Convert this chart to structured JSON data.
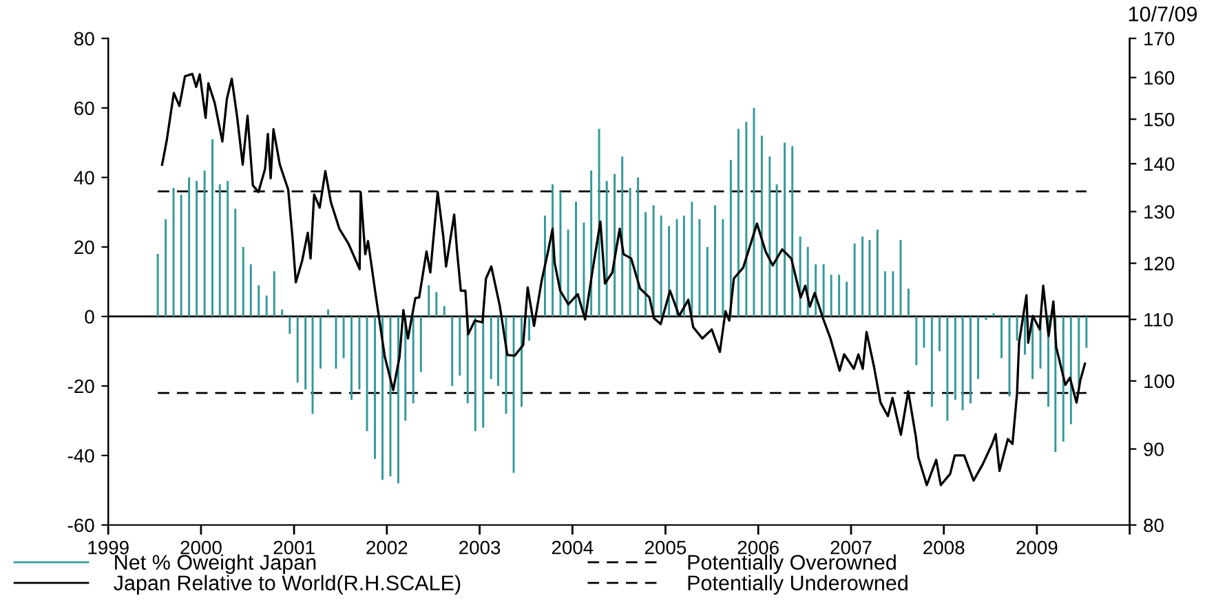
{
  "chart_data": {
    "type": "bar",
    "annotations": [
      "10/7/09"
    ],
    "xlim": [
      "1999-01-01",
      "2010-01-01"
    ],
    "xticks": [
      {
        "value": "1999-01-01",
        "label": "1999"
      },
      {
        "value": "2000-01-01",
        "label": "2000"
      },
      {
        "value": "2001-01-01",
        "label": "2001"
      },
      {
        "value": "2002-01-01",
        "label": "2002"
      },
      {
        "value": "2003-01-01",
        "label": "2003"
      },
      {
        "value": "2004-01-01",
        "label": "2004"
      },
      {
        "value": "2005-01-01",
        "label": "2005"
      },
      {
        "value": "2006-01-01",
        "label": "2006"
      },
      {
        "value": "2007-01-01",
        "label": "2007"
      },
      {
        "value": "2008-01-01",
        "label": "2008"
      },
      {
        "value": "2009-01-01",
        "label": "2009"
      },
      {
        "value": "2010-01-01",
        "label": null
      }
    ],
    "ylim": [
      -60,
      80
    ],
    "yticks": [
      -60,
      -40,
      -20,
      0,
      20,
      40,
      60,
      80
    ],
    "y2lim": [
      80,
      170
    ],
    "y2ticks": [
      80,
      90,
      100,
      110,
      120,
      130,
      140,
      150,
      160,
      170
    ],
    "log": "y2",
    "legend": "bottom",
    "series": [
      {
        "name": "Net % Oweight Japan",
        "color": "#339999",
        "x": [
          "1999-07-15",
          "1999-08-15",
          "1999-09-15",
          "1999-10-15",
          "1999-11-15",
          "1999-12-15",
          "2000-01-15",
          "2000-02-15",
          "2000-03-15",
          "2000-04-15",
          "2000-05-15",
          "2000-06-15",
          "2000-07-15",
          "2000-08-15",
          "2000-09-15",
          "2000-10-15",
          "2000-11-15",
          "2000-12-15",
          "2001-01-15",
          "2001-02-15",
          "2001-03-15",
          "2001-04-15",
          "2001-05-15",
          "2001-06-15",
          "2001-07-15",
          "2001-08-15",
          "2001-09-15",
          "2001-10-15",
          "2001-11-15",
          "2001-12-15",
          "2002-01-15",
          "2002-02-15",
          "2002-03-15",
          "2002-04-15",
          "2002-05-15",
          "2002-06-15",
          "2002-07-15",
          "2002-08-15",
          "2002-09-15",
          "2002-10-15",
          "2002-11-15",
          "2002-12-15",
          "2003-01-15",
          "2003-02-15",
          "2003-03-15",
          "2003-04-15",
          "2003-05-15",
          "2003-06-15",
          "2003-07-15",
          "2003-08-15",
          "2003-09-15",
          "2003-10-15",
          "2003-11-15",
          "2003-12-15",
          "2004-01-15",
          "2004-02-15",
          "2004-03-15",
          "2004-04-15",
          "2004-05-15",
          "2004-06-15",
          "2004-07-15",
          "2004-08-15",
          "2004-09-15",
          "2004-10-15",
          "2004-11-15",
          "2004-12-15",
          "2005-01-15",
          "2005-02-15",
          "2005-03-15",
          "2005-04-15",
          "2005-05-15",
          "2005-06-15",
          "2005-07-15",
          "2005-08-15",
          "2005-09-15",
          "2005-10-15",
          "2005-11-15",
          "2005-12-15",
          "2006-01-15",
          "2006-02-15",
          "2006-03-15",
          "2006-04-15",
          "2006-05-15",
          "2006-06-15",
          "2006-07-15",
          "2006-08-15",
          "2006-09-15",
          "2006-10-15",
          "2006-11-15",
          "2006-12-15",
          "2007-01-15",
          "2007-02-15",
          "2007-03-15",
          "2007-04-15",
          "2007-05-15",
          "2007-06-15",
          "2007-07-15",
          "2007-08-15",
          "2007-09-15",
          "2007-10-15",
          "2007-11-15",
          "2007-12-15",
          "2008-01-15",
          "2008-02-15",
          "2008-03-15",
          "2008-04-15",
          "2008-05-15",
          "2008-06-15",
          "2008-07-15",
          "2008-08-15",
          "2008-09-15",
          "2008-10-15",
          "2008-11-15",
          "2008-12-15",
          "2009-01-15",
          "2009-02-15",
          "2009-03-15",
          "2009-04-15",
          "2009-05-15",
          "2009-06-15",
          "2009-07-15"
        ],
        "values": [
          18,
          28,
          37,
          35,
          40,
          39,
          42,
          51,
          38,
          39,
          31,
          20,
          15,
          9,
          6,
          13,
          2,
          -5,
          -19,
          -21,
          -28,
          -15,
          2,
          -15,
          -12,
          -24,
          -21,
          -33,
          -41,
          -47,
          -46,
          -48,
          -30,
          -25,
          -16,
          9,
          7,
          3,
          -20,
          -17,
          -25,
          -33,
          -32,
          -18,
          -20,
          -28,
          -45,
          -26,
          -7,
          null,
          29,
          38,
          36,
          25,
          33,
          27,
          42,
          54,
          39,
          41,
          46,
          37,
          40,
          30,
          32,
          29,
          26,
          28,
          29,
          33,
          28,
          20,
          32,
          28,
          45,
          54,
          56,
          60,
          52,
          46,
          38,
          50,
          49,
          23,
          20,
          15,
          15,
          12,
          12,
          10,
          21,
          23,
          22,
          25,
          13,
          13,
          22,
          8,
          -14,
          -9,
          -26,
          -10,
          -30,
          -24,
          -27,
          -25,
          -18,
          -1,
          1,
          -12,
          -23,
          -7,
          -11,
          -18,
          -15,
          -26,
          -39,
          -36,
          -31,
          -20,
          -9
        ]
      },
      {
        "name": "Japan Relative to World(R.H.SCALE)",
        "type": "line",
        "axis": "y2",
        "color": "#000000",
        "x": [
          "1999-08-01",
          "1999-08-19",
          "1999-09-16",
          "1999-10-08",
          "1999-10-30",
          "1999-11-28",
          "1999-12-13",
          "1999-12-27",
          "2000-01-19",
          "2000-01-30",
          "2000-02-24",
          "2000-03-25",
          "2000-04-12",
          "2000-05-01",
          "2000-05-22",
          "2000-06-13",
          "2000-07-02",
          "2000-07-23",
          "2000-08-14",
          "2000-09-09",
          "2000-09-20",
          "2000-10-01",
          "2000-10-12",
          "2000-11-06",
          "2000-12-09",
          "2000-12-27",
          "2001-01-08",
          "2001-02-02",
          "2001-02-24",
          "2001-03-07",
          "2001-03-21",
          "2001-04-12",
          "2001-05-04",
          "2001-05-26",
          "2001-06-28",
          "2001-08-03",
          "2001-09-16",
          "2001-09-20",
          "2001-10-08",
          "2001-10-19",
          "2001-11-17",
          "2001-12-24",
          "2002-01-26",
          "2002-02-20",
          "2002-03-07",
          "2002-03-25",
          "2002-04-23",
          "2002-05-08",
          "2002-06-06",
          "2002-06-21",
          "2002-07-20",
          "2002-08-11",
          "2002-08-22",
          "2002-09-23",
          "2002-10-04",
          "2002-10-19",
          "2002-11-06",
          "2002-11-17",
          "2002-12-13",
          "2003-01-12",
          "2003-01-26",
          "2003-02-16",
          "2003-03-21",
          "2003-04-20",
          "2003-05-19",
          "2003-06-21",
          "2003-07-09",
          "2003-08-03",
          "2003-09-02",
          "2003-09-27",
          "2003-10-15",
          "2003-10-23",
          "2003-11-14",
          "2003-12-16",
          "2004-01-22",
          "2004-02-20",
          "2004-03-18",
          "2004-04-20",
          "2004-05-08",
          "2004-06-06",
          "2004-07-05",
          "2004-07-20",
          "2004-08-19",
          "2004-09-23",
          "2004-10-30",
          "2004-11-17",
          "2004-12-13",
          "2005-01-19",
          "2005-02-24",
          "2005-04-01",
          "2005-04-20",
          "2005-05-26",
          "2005-07-02",
          "2005-08-03",
          "2005-08-25",
          "2005-09-09",
          "2005-09-27",
          "2005-11-03",
          "2005-12-27",
          "2006-01-30",
          "2006-02-27",
          "2006-04-05",
          "2006-05-11",
          "2006-06-17",
          "2006-07-05",
          "2006-07-23",
          "2006-08-11",
          "2006-09-16",
          "2006-10-12",
          "2006-11-17",
          "2006-12-05",
          "2007-01-12",
          "2007-01-30",
          "2007-02-16",
          "2007-03-03",
          "2007-04-01",
          "2007-04-27",
          "2007-05-26",
          "2007-06-13",
          "2007-07-16",
          "2007-08-14",
          "2007-09-13",
          "2007-09-23",
          "2007-10-26",
          "2007-12-02",
          "2007-12-20",
          "2008-01-26",
          "2008-02-13",
          "2008-03-21",
          "2008-04-27",
          "2008-06-02",
          "2008-07-09",
          "2008-07-23",
          "2008-08-07",
          "2008-09-09",
          "2008-09-27",
          "2008-10-15",
          "2008-10-23",
          "2008-11-21",
          "2008-11-28",
          "2008-12-16",
          "2009-01-12",
          "2009-01-26",
          "2009-02-16",
          "2009-03-07",
          "2009-03-18",
          "2009-04-23",
          "2009-05-11",
          "2009-06-06",
          "2009-06-21",
          "2009-07-09"
        ],
        "values": [
          139.8,
          145.1,
          156.2,
          153.1,
          160.3,
          160.9,
          157.7,
          160.8,
          150.3,
          158.6,
          153.8,
          144.9,
          154.9,
          159.7,
          150.6,
          139.8,
          150.8,
          135.4,
          134.0,
          138.9,
          146.6,
          136.9,
          147.7,
          139.8,
          134.5,
          124.2,
          116.5,
          120.5,
          125.8,
          120.9,
          133.5,
          130.8,
          138.4,
          131.9,
          126.6,
          123.7,
          118.9,
          134.0,
          121.7,
          124.2,
          114.6,
          103.8,
          98.6,
          103.8,
          111.6,
          106.8,
          113.7,
          113.8,
          122.2,
          118.3,
          134.0,
          125.1,
          119.4,
          129.4,
          122.4,
          115.0,
          115.0,
          107.5,
          109.8,
          109.5,
          117.2,
          119.4,
          112.4,
          104.1,
          104.0,
          105.7,
          115.6,
          108.9,
          116.8,
          122.2,
          126.6,
          120.1,
          115.0,
          112.6,
          114.4,
          110.0,
          118.0,
          128.0,
          116.3,
          118.3,
          126.6,
          121.7,
          120.9,
          115.4,
          113.8,
          110.2,
          109.2,
          115.0,
          110.6,
          113.4,
          108.7,
          106.8,
          108.3,
          104.6,
          111.4,
          109.8,
          117.2,
          119.2,
          127.6,
          122.2,
          119.6,
          122.6,
          120.9,
          113.8,
          115.9,
          112.2,
          114.6,
          109.8,
          106.8,
          101.6,
          104.2,
          101.9,
          104.2,
          101.9,
          107.9,
          102.3,
          96.7,
          94.7,
          97.4,
          92.0,
          98.4,
          91.7,
          88.8,
          85.1,
          88.5,
          85.1,
          86.6,
          89.1,
          89.1,
          85.7,
          87.9,
          90.7,
          92.1,
          87.0,
          91.4,
          90.7,
          98.1,
          106.1,
          114.2,
          106.1,
          110.6,
          108.3,
          115.9,
          107.2,
          113.1,
          105.4,
          99.4,
          100.5,
          96.7,
          100.1,
          102.7
        ]
      }
    ],
    "ref_lines": [
      {
        "axis": "y",
        "value": 0,
        "color": "#000000",
        "line_style": "solid"
      },
      {
        "axis": "y",
        "value": 36,
        "label": "Potentially Overowned",
        "color": "#000000",
        "line_style": "dashed"
      },
      {
        "axis": "y",
        "value": -22,
        "label": "Potentially Underowned",
        "color": "#000000",
        "line_style": "dashed"
      }
    ]
  }
}
